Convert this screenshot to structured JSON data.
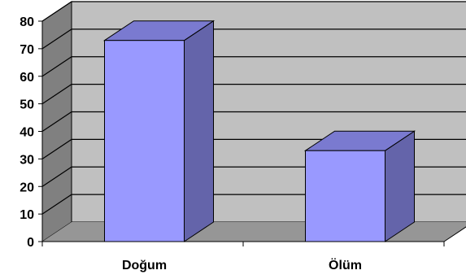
{
  "chart_data": {
    "type": "bar",
    "categories": [
      "Doğum",
      "Ölüm"
    ],
    "values": [
      73,
      33
    ],
    "ylim": [
      0,
      80
    ],
    "yticks": [
      "0",
      "10",
      "20",
      "30",
      "40",
      "50",
      "60",
      "70",
      "80"
    ],
    "grid": true,
    "legend": "none",
    "three_d": true,
    "colors": {
      "bar_front": "#9999ff",
      "bar_top": "#7a7ad0",
      "bar_side": "#6464aa",
      "wall": "#c0c0c0",
      "side_wall": "#808080",
      "floor": "#969696",
      "grid": "#000000"
    }
  }
}
